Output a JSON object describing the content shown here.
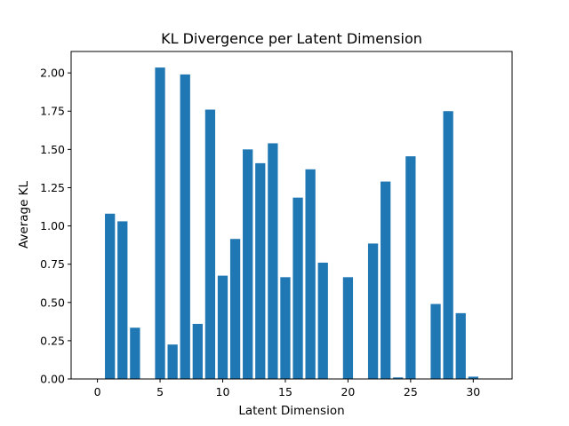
{
  "chart_data": {
    "type": "bar",
    "title": "KL Divergence per Latent Dimension",
    "xlabel": "Latent Dimension",
    "ylabel": "Average KL",
    "x": [
      0,
      1,
      2,
      3,
      4,
      5,
      6,
      7,
      8,
      9,
      10,
      11,
      12,
      13,
      14,
      15,
      16,
      17,
      18,
      19,
      20,
      21,
      22,
      23,
      24,
      25,
      26,
      27,
      28,
      29,
      30,
      31
    ],
    "values": [
      0.0,
      1.08,
      1.03,
      0.335,
      0.0,
      2.035,
      0.225,
      1.99,
      0.36,
      1.76,
      0.675,
      0.915,
      1.5,
      1.41,
      1.54,
      0.665,
      1.185,
      1.37,
      0.76,
      0.0,
      0.665,
      0.0,
      0.885,
      1.29,
      0.01,
      1.455,
      0.0,
      0.49,
      1.75,
      0.43,
      0.015,
      0.0
    ],
    "xlim": [
      -2.1,
      33.1
    ],
    "ylim": [
      0,
      2.14
    ],
    "xticks": [
      0,
      5,
      10,
      15,
      20,
      25,
      30
    ],
    "xtick_labels": [
      "0",
      "5",
      "10",
      "15",
      "20",
      "25",
      "30"
    ],
    "yticks": [
      0,
      0.25,
      0.5,
      0.75,
      1.0,
      1.25,
      1.5,
      1.75,
      2.0
    ],
    "ytick_labels": [
      "0.00",
      "0.25",
      "0.50",
      "0.75",
      "1.00",
      "1.25",
      "1.50",
      "1.75",
      "2.00"
    ],
    "bar_color": "#1f77b4",
    "grid": false,
    "legend": false
  }
}
